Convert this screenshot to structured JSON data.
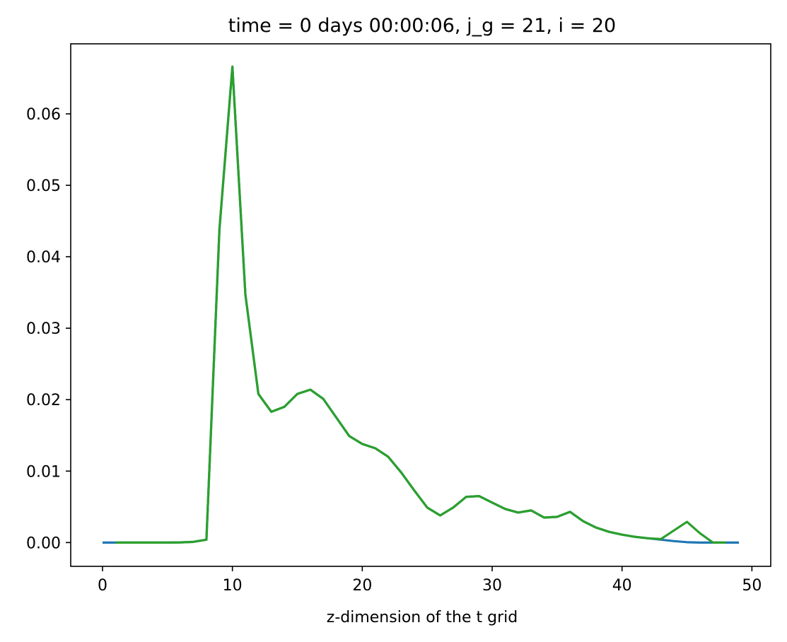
{
  "chart_data": {
    "type": "line",
    "title": "time = 0 days 00:00:06, j_g = 21, i = 20",
    "xlabel": "z-dimension of the t grid",
    "ylabel": "",
    "xlim": [
      -2.45,
      51.45
    ],
    "ylim": [
      -0.00333,
      0.0698
    ],
    "xticks": [
      0,
      10,
      20,
      30,
      40,
      50
    ],
    "xtick_labels": [
      "0",
      "10",
      "20",
      "30",
      "40",
      "50"
    ],
    "yticks": [
      0.0,
      0.01,
      0.02,
      0.03,
      0.04,
      0.05,
      0.06
    ],
    "ytick_labels": [
      "0.00",
      "0.01",
      "0.02",
      "0.03",
      "0.04",
      "0.05",
      "0.06"
    ],
    "grid": false,
    "series": [
      {
        "color": "#1f77b4",
        "x": [
          0,
          1,
          2,
          3,
          4,
          5,
          6,
          7,
          8,
          9,
          10,
          11,
          12,
          13,
          14,
          15,
          16,
          17,
          18,
          19,
          20,
          21,
          22,
          23,
          24,
          25,
          26,
          27,
          28,
          29,
          30,
          31,
          32,
          33,
          34,
          35,
          36,
          37,
          38,
          39,
          40,
          41,
          42,
          43,
          44,
          45,
          46,
          47,
          48,
          49
        ],
        "values": [
          0,
          0,
          0,
          0,
          0,
          0,
          2e-05,
          0.0001,
          0.0004,
          0.0438,
          0.0666,
          0.0347,
          0.0208,
          0.0183,
          0.019,
          0.0208,
          0.0214,
          0.0201,
          0.0175,
          0.0149,
          0.0138,
          0.0132,
          0.012,
          0.0098,
          0.0073,
          0.0049,
          0.0038,
          0.0049,
          0.0064,
          0.0065,
          0.0056,
          0.0047,
          0.0042,
          0.0045,
          0.0035,
          0.0036,
          0.0043,
          0.003,
          0.0021,
          0.0015,
          0.0011,
          0.0008,
          0.0006,
          0.0004,
          0.0002,
          5e-05,
          0,
          0,
          0,
          0
        ]
      },
      {
        "color": "#2ca02c",
        "x": [
          1,
          2,
          3,
          4,
          5,
          6,
          7,
          8,
          9,
          10,
          11,
          12,
          13,
          14,
          15,
          16,
          17,
          18,
          19,
          20,
          21,
          22,
          23,
          24,
          25,
          26,
          27,
          28,
          29,
          30,
          31,
          32,
          33,
          34,
          35,
          36,
          37,
          38,
          39,
          40,
          41,
          42,
          43,
          44,
          45,
          46,
          47,
          48
        ],
        "values": [
          0,
          0,
          0,
          0,
          0,
          2e-05,
          0.0001,
          0.0004,
          0.0438,
          0.0666,
          0.0347,
          0.0208,
          0.0183,
          0.019,
          0.0208,
          0.0214,
          0.0201,
          0.0175,
          0.0149,
          0.0138,
          0.0132,
          0.012,
          0.0098,
          0.0073,
          0.0049,
          0.0038,
          0.0049,
          0.0064,
          0.0065,
          0.0056,
          0.0047,
          0.0042,
          0.0045,
          0.0035,
          0.0036,
          0.0043,
          0.003,
          0.0021,
          0.0015,
          0.0011,
          0.0008,
          0.0006,
          0.0005,
          0.0017,
          0.0029,
          0.0013,
          0,
          0
        ]
      }
    ]
  }
}
